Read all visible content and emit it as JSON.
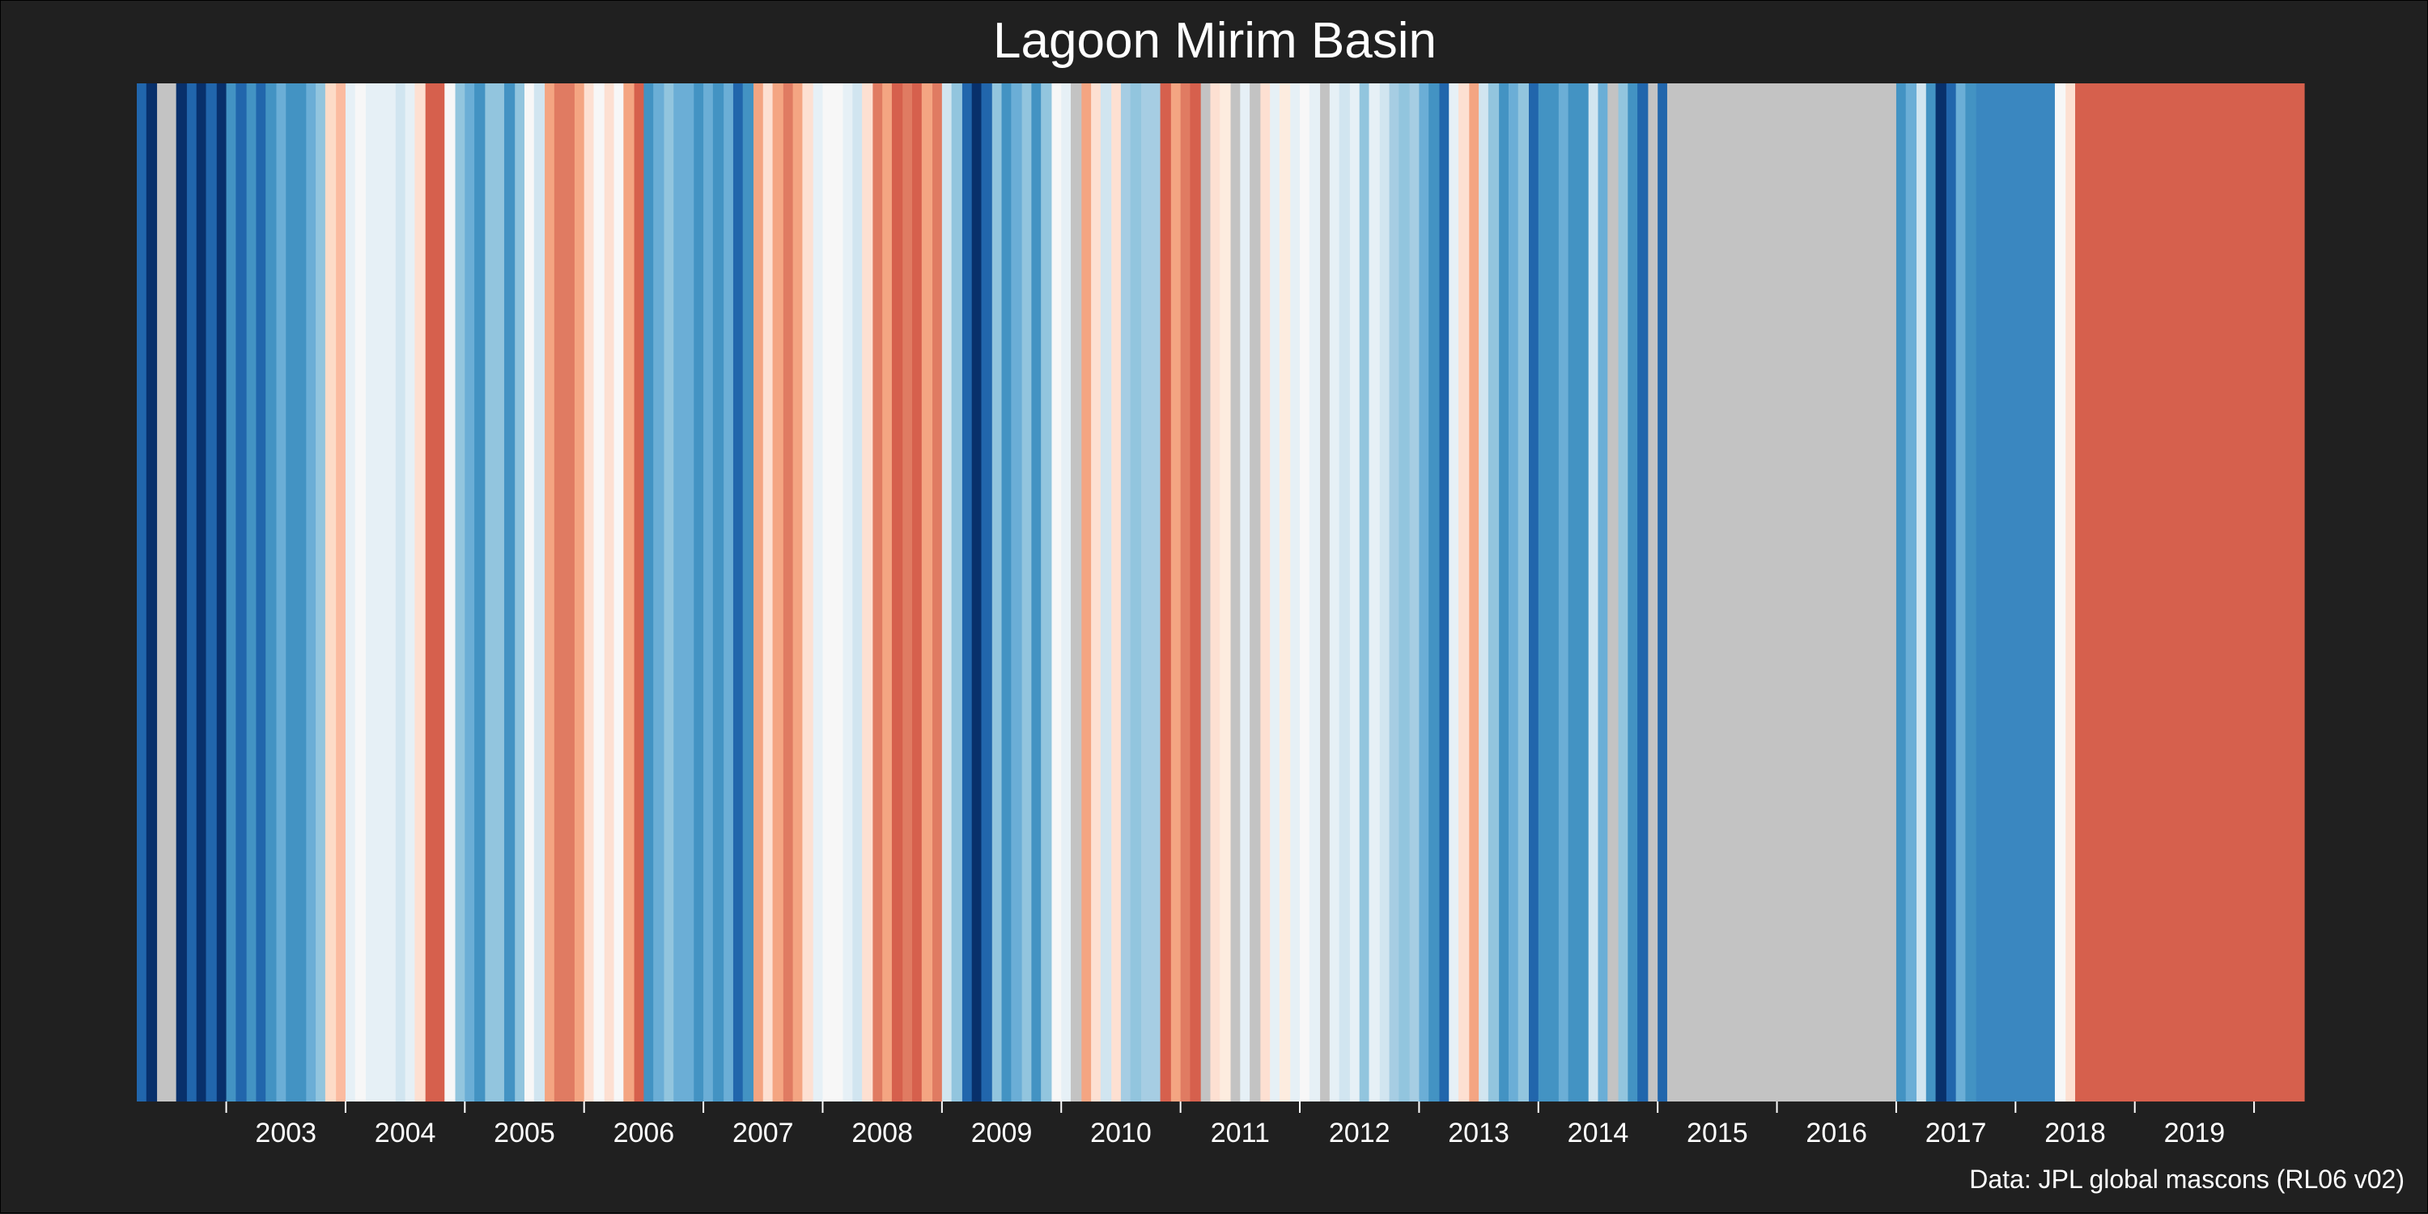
{
  "chart_data": {
    "type": "heatmap",
    "title": "Lagoon Mirim Basin",
    "caption": "Data: JPL global mascons (RL06 v02)",
    "xlabel": "",
    "ylabel": "",
    "x_start": 2002.25,
    "x_end": 2020.42,
    "ticks": [
      2003,
      2004,
      2005,
      2006,
      2007,
      2008,
      2009,
      2010,
      2011,
      2012,
      2013,
      2014,
      2015,
      2016,
      2017,
      2018,
      2019
    ],
    "colors": {
      "background": "#202020",
      "missing": "#c3c3c3",
      "text": "#ffffff"
    },
    "stripes": [
      [
        "#2166ac",
        2002.25
      ],
      [
        "#08306b",
        2002.33
      ],
      [
        "#c3c3c3",
        2002.42
      ],
      [
        "#08306b",
        2002.58
      ],
      [
        "#2166ac",
        2002.67
      ],
      [
        "#08306b",
        2002.75
      ],
      [
        "#2166ac",
        2002.83
      ],
      [
        "#08306b",
        2002.92
      ],
      [
        "#4393c3",
        2003.0
      ],
      [
        "#2166ac",
        2003.08
      ],
      [
        "#4393c3",
        2003.17
      ],
      [
        "#2166ac",
        2003.25
      ],
      [
        "#4393c3",
        2003.33
      ],
      [
        "#6baed6",
        2003.42
      ],
      [
        "#4393c3",
        2003.5
      ],
      [
        "#6baed6",
        2003.67
      ],
      [
        "#92c5de",
        2003.75
      ],
      [
        "#fddbc7",
        2003.83
      ],
      [
        "#fbbba0",
        2003.92
      ],
      [
        "#e6f0f6",
        2004.0
      ],
      [
        "#f7f7f7",
        2004.08
      ],
      [
        "#e6f0f6",
        2004.17
      ],
      [
        "#d1e5f0",
        2004.42
      ],
      [
        "#e6f0f6",
        2004.5
      ],
      [
        "#fde0d2",
        2004.58
      ],
      [
        "#d6604d",
        2004.67
      ],
      [
        "#f7f7f7",
        2004.83
      ],
      [
        "#92c5de",
        2004.92
      ],
      [
        "#6baed6",
        2005.0
      ],
      [
        "#4393c3",
        2005.08
      ],
      [
        "#92c5de",
        2005.17
      ],
      [
        "#4393c3",
        2005.33
      ],
      [
        "#92c5de",
        2005.42
      ],
      [
        "#f7f7f7",
        2005.5
      ],
      [
        "#d1e5f0",
        2005.58
      ],
      [
        "#f4a582",
        2005.67
      ],
      [
        "#e07b62",
        2005.75
      ],
      [
        "#f4a582",
        2005.92
      ],
      [
        "#fde0d2",
        2006.0
      ],
      [
        "#f7f7f7",
        2006.08
      ],
      [
        "#fde0d2",
        2006.17
      ],
      [
        "#f7f7f7",
        2006.25
      ],
      [
        "#f4a582",
        2006.33
      ],
      [
        "#d6604d",
        2006.42
      ],
      [
        "#4393c3",
        2006.5
      ],
      [
        "#6baed6",
        2006.58
      ],
      [
        "#92c5de",
        2006.67
      ],
      [
        "#6baed6",
        2006.75
      ],
      [
        "#4393c3",
        2006.92
      ],
      [
        "#6baed6",
        2007.0
      ],
      [
        "#4393c3",
        2007.08
      ],
      [
        "#6baed6",
        2007.17
      ],
      [
        "#2166ac",
        2007.25
      ],
      [
        "#4393c3",
        2007.33
      ],
      [
        "#f4a582",
        2007.42
      ],
      [
        "#fde0d2",
        2007.5
      ],
      [
        "#f4a582",
        2007.58
      ],
      [
        "#e07b62",
        2007.67
      ],
      [
        "#f4a582",
        2007.75
      ],
      [
        "#fde0d2",
        2007.83
      ],
      [
        "#e6f0f6",
        2007.92
      ],
      [
        "#f7f7f7",
        2008.0
      ],
      [
        "#e6f0f6",
        2008.17
      ],
      [
        "#d1e5f0",
        2008.25
      ],
      [
        "#fde0d2",
        2008.33
      ],
      [
        "#e07b62",
        2008.42
      ],
      [
        "#f4a582",
        2008.5
      ],
      [
        "#d6604d",
        2008.58
      ],
      [
        "#e07b62",
        2008.67
      ],
      [
        "#d6604d",
        2008.75
      ],
      [
        "#f4a582",
        2008.83
      ],
      [
        "#e07b62",
        2008.92
      ],
      [
        "#d1e5f0",
        2009.0
      ],
      [
        "#92c5de",
        2009.08
      ],
      [
        "#2166ac",
        2009.17
      ],
      [
        "#08306b",
        2009.25
      ],
      [
        "#2166ac",
        2009.33
      ],
      [
        "#92c5de",
        2009.42
      ],
      [
        "#4393c3",
        2009.5
      ],
      [
        "#6baed6",
        2009.58
      ],
      [
        "#92c5de",
        2009.67
      ],
      [
        "#4393c3",
        2009.75
      ],
      [
        "#92c5de",
        2009.83
      ],
      [
        "#f7f7f7",
        2009.92
      ],
      [
        "#e6f0f6",
        2010.0
      ],
      [
        "#c3c3c3",
        2010.08
      ],
      [
        "#f4a582",
        2010.17
      ],
      [
        "#fde0d2",
        2010.25
      ],
      [
        "#d1e5f0",
        2010.33
      ],
      [
        "#fde0d2",
        2010.42
      ],
      [
        "#a6cde3",
        2010.5
      ],
      [
        "#92c5de",
        2010.58
      ],
      [
        "#a6cde3",
        2010.67
      ],
      [
        "#d6604d",
        2010.83
      ],
      [
        "#f4a582",
        2010.92
      ],
      [
        "#e07b62",
        2011.0
      ],
      [
        "#d6604d",
        2011.08
      ],
      [
        "#c3c3c3",
        2011.17
      ],
      [
        "#fde0d2",
        2011.25
      ],
      [
        "#fdecdf",
        2011.33
      ],
      [
        "#c3c3c3",
        2011.42
      ],
      [
        "#e6f0f6",
        2011.5
      ],
      [
        "#c3c3c3",
        2011.58
      ],
      [
        "#fde0d2",
        2011.67
      ],
      [
        "#e6f0f6",
        2011.75
      ],
      [
        "#fdecdf",
        2011.83
      ],
      [
        "#e6f0f6",
        2011.92
      ],
      [
        "#f7f7f7",
        2012.0
      ],
      [
        "#e6f0f6",
        2012.08
      ],
      [
        "#c3c3c3",
        2012.17
      ],
      [
        "#e6f0f6",
        2012.25
      ],
      [
        "#d1e5f0",
        2012.33
      ],
      [
        "#e6f0f6",
        2012.42
      ],
      [
        "#92c5de",
        2012.5
      ],
      [
        "#e6f0f6",
        2012.58
      ],
      [
        "#d1e5f0",
        2012.67
      ],
      [
        "#a6cde3",
        2012.75
      ],
      [
        "#92c5de",
        2012.83
      ],
      [
        "#a6cde3",
        2012.92
      ],
      [
        "#6baed6",
        2013.0
      ],
      [
        "#4393c3",
        2013.08
      ],
      [
        "#2166ac",
        2013.17
      ],
      [
        "#e6f0f6",
        2013.25
      ],
      [
        "#fde0d2",
        2013.33
      ],
      [
        "#f4a582",
        2013.42
      ],
      [
        "#d1e5f0",
        2013.5
      ],
      [
        "#92c5de",
        2013.58
      ],
      [
        "#4393c3",
        2013.67
      ],
      [
        "#6baed6",
        2013.75
      ],
      [
        "#92c5de",
        2013.83
      ],
      [
        "#2166ac",
        2013.92
      ],
      [
        "#4393c3",
        2014.0
      ],
      [
        "#6baed6",
        2014.17
      ],
      [
        "#4393c3",
        2014.25
      ],
      [
        "#d1e5f0",
        2014.42
      ],
      [
        "#6baed6",
        2014.5
      ],
      [
        "#c3c3c3",
        2014.58
      ],
      [
        "#92c5de",
        2014.67
      ],
      [
        "#4393c3",
        2014.75
      ],
      [
        "#2166ac",
        2014.83
      ],
      [
        "#c3c3c3",
        2014.92
      ],
      [
        "#2166ac",
        2015.0
      ],
      [
        "#c3c3c3",
        2015.08
      ],
      [
        "#c3c3c3",
        2015.42
      ],
      [
        "#4393c3",
        2017.0
      ],
      [
        "#6baed6",
        2017.08
      ],
      [
        "#d1e5f0",
        2017.17
      ],
      [
        "#4393c3",
        2017.25
      ],
      [
        "#08306b",
        2017.33
      ],
      [
        "#2166ac",
        2017.42
      ],
      [
        "#6baed6",
        2017.5
      ],
      [
        "#4393c3",
        2017.58
      ],
      [
        "#3a87c0",
        2017.67
      ],
      [
        "#f7f7f7",
        2018.33
      ],
      [
        "#fde0d2",
        2018.42
      ],
      [
        "#d6604d",
        2018.5
      ]
    ]
  }
}
